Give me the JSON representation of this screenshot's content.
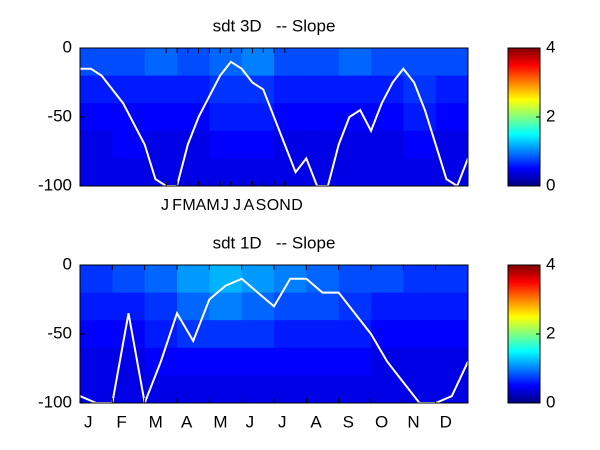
{
  "chart_data": [
    {
      "type": "heatmap",
      "title": "sdt 3D   -- Slope",
      "xlim": [
        0,
        36
      ],
      "ylim": [
        -100,
        0
      ],
      "yticks": [
        -100,
        -50,
        0
      ],
      "xticks": [
        {
          "value": 8,
          "label": "J"
        },
        {
          "value": 9,
          "label": "F"
        },
        {
          "value": 10,
          "label": "M"
        },
        {
          "value": 11,
          "label": "A"
        },
        {
          "value": 12,
          "label": "M"
        },
        {
          "value": 13,
          "label": "J"
        },
        {
          "value": 14,
          "label": "J"
        },
        {
          "value": 15,
          "label": "A"
        },
        {
          "value": 16,
          "label": "S"
        },
        {
          "value": 17,
          "label": "O"
        },
        {
          "value": 18,
          "label": "N"
        },
        {
          "value": 19,
          "label": "D"
        }
      ],
      "z": [
        [
          0.8,
          0.8,
          0.9,
          0.8,
          0.9,
          1.0,
          0.8,
          0.8,
          0.9,
          0.8,
          0.8,
          0.8
        ],
        [
          0.6,
          0.6,
          0.6,
          0.6,
          0.7,
          0.7,
          0.6,
          0.6,
          0.6,
          0.6,
          0.7,
          0.6
        ],
        [
          0.5,
          0.5,
          0.5,
          0.5,
          0.6,
          0.6,
          0.5,
          0.5,
          0.5,
          0.5,
          0.6,
          0.5
        ],
        [
          0.4,
          0.5,
          0.4,
          0.4,
          0.5,
          0.5,
          0.4,
          0.4,
          0.4,
          0.4,
          0.5,
          0.4
        ],
        [
          0.4,
          0.4,
          0.4,
          0.4,
          0.4,
          0.4,
          0.4,
          0.4,
          0.4,
          0.4,
          0.4,
          0.4
        ]
      ],
      "clim": [
        0,
        4
      ],
      "cticks": [
        0,
        2,
        4
      ],
      "line": {
        "color": "#ffffff",
        "x": [
          0,
          1,
          2,
          3,
          4,
          5,
          6,
          7,
          8,
          9,
          10,
          11,
          12,
          13,
          14,
          15,
          16,
          17,
          18,
          19,
          20,
          21,
          22,
          23,
          24,
          25,
          26,
          27,
          28,
          29,
          30,
          31,
          32,
          33,
          34,
          35,
          36
        ],
        "values": [
          -15,
          -15,
          -20,
          -30,
          -40,
          -55,
          -70,
          -95,
          -100,
          -100,
          -70,
          -50,
          -35,
          -20,
          -10,
          -15,
          -25,
          -30,
          -50,
          -70,
          -90,
          -80,
          -100,
          -100,
          -70,
          -50,
          -45,
          -60,
          -40,
          -25,
          -15,
          -25,
          -45,
          -70,
          -95,
          -100,
          -80
        ]
      }
    },
    {
      "type": "heatmap",
      "title": "sdt 1D   -- Slope",
      "xlim": [
        0,
        12
      ],
      "ylim": [
        -100,
        0
      ],
      "yticks": [
        -100,
        -50,
        0
      ],
      "xticks": [
        {
          "value": 0,
          "label": "J"
        },
        {
          "value": 1,
          "label": "F"
        },
        {
          "value": 2,
          "label": "M"
        },
        {
          "value": 3,
          "label": "A"
        },
        {
          "value": 4,
          "label": "M"
        },
        {
          "value": 5,
          "label": "J"
        },
        {
          "value": 6,
          "label": "J"
        },
        {
          "value": 7,
          "label": "A"
        },
        {
          "value": 8,
          "label": "S"
        },
        {
          "value": 9,
          "label": "O"
        },
        {
          "value": 10,
          "label": "N"
        },
        {
          "value": 11,
          "label": "D"
        }
      ],
      "z": [
        [
          0.7,
          0.8,
          0.9,
          1.1,
          1.2,
          1.1,
          1.0,
          0.9,
          0.8,
          0.8,
          0.7,
          0.7
        ],
        [
          0.6,
          0.6,
          0.7,
          0.9,
          1.0,
          0.9,
          0.8,
          0.8,
          0.7,
          0.6,
          0.6,
          0.6
        ],
        [
          0.5,
          0.5,
          0.6,
          0.7,
          0.7,
          0.7,
          0.6,
          0.6,
          0.6,
          0.5,
          0.5,
          0.5
        ],
        [
          0.4,
          0.4,
          0.5,
          0.5,
          0.5,
          0.5,
          0.5,
          0.5,
          0.5,
          0.4,
          0.4,
          0.4
        ],
        [
          0.4,
          0.4,
          0.4,
          0.4,
          0.4,
          0.4,
          0.4,
          0.4,
          0.4,
          0.4,
          0.4,
          0.4
        ]
      ],
      "clim": [
        0,
        4
      ],
      "cticks": [
        0,
        2,
        4
      ],
      "line": {
        "color": "#ffffff",
        "x": [
          0,
          0.5,
          1,
          1.5,
          2,
          2.5,
          3,
          3.5,
          4,
          4.5,
          5,
          5.5,
          6,
          6.5,
          7,
          7.5,
          8,
          8.5,
          9,
          9.5,
          10,
          10.5,
          11,
          11.5,
          12
        ],
        "values": [
          -95,
          -100,
          -100,
          -35,
          -100,
          -70,
          -35,
          -55,
          -25,
          -15,
          -10,
          -20,
          -30,
          -10,
          -10,
          -20,
          -20,
          -35,
          -50,
          -70,
          -85,
          -100,
          -100,
          -95,
          -70
        ]
      }
    }
  ]
}
